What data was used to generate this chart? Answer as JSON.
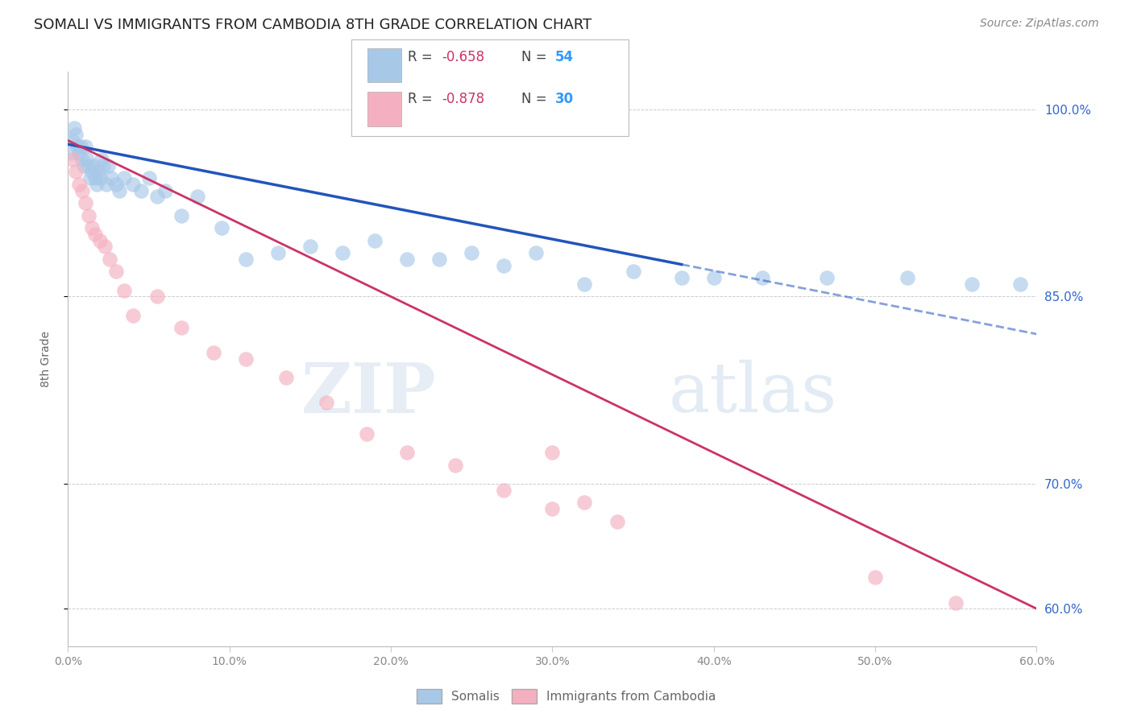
{
  "title": "SOMALI VS IMMIGRANTS FROM CAMBODIA 8TH GRADE CORRELATION CHART",
  "source": "Source: ZipAtlas.com",
  "ylabel": "8th Grade",
  "background_color": "#ffffff",
  "grid_color": "#cccccc",
  "somali_scatter_color": "#a8c8e8",
  "cambodia_scatter_color": "#f4b0c0",
  "somali_line_color": "#2255bb",
  "cambodia_line_color": "#cc3366",
  "R_text_color": "#cc3366",
  "N_text_color": "#3399ff",
  "right_axis_color": "#3366cc",
  "x_min": 0.0,
  "x_max": 60.0,
  "y_min": 57.0,
  "y_max": 103.0,
  "y_ticks": [
    60.0,
    70.0,
    85.0,
    100.0
  ],
  "x_ticks": [
    0.0,
    10.0,
    20.0,
    30.0,
    40.0,
    50.0,
    60.0
  ],
  "somali_label": "Somalis",
  "cambodia_label": "Immigrants from Cambodia",
  "somali_line_x0": 0.0,
  "somali_line_y0": 97.2,
  "somali_line_x1": 60.0,
  "somali_line_y1": 82.0,
  "somali_solid_end": 38.0,
  "cambodia_line_x0": 0.0,
  "cambodia_line_y0": 97.5,
  "cambodia_line_x1": 60.0,
  "cambodia_line_y1": 60.0,
  "somali_x": [
    0.2,
    0.3,
    0.4,
    0.5,
    0.6,
    0.7,
    0.8,
    0.9,
    1.0,
    1.1,
    1.2,
    1.3,
    1.4,
    1.5,
    1.6,
    1.7,
    1.8,
    1.9,
    2.0,
    2.1,
    2.2,
    2.4,
    2.5,
    2.7,
    3.0,
    3.2,
    3.5,
    4.0,
    4.5,
    5.0,
    5.5,
    6.0,
    7.0,
    8.0,
    9.5,
    11.0,
    13.0,
    15.0,
    17.0,
    19.0,
    21.0,
    23.0,
    25.0,
    27.0,
    29.0,
    32.0,
    35.0,
    38.0,
    40.0,
    43.0,
    47.0,
    52.0,
    56.0,
    59.0
  ],
  "somali_y": [
    96.5,
    97.5,
    98.5,
    98.0,
    97.0,
    96.5,
    97.0,
    96.0,
    95.5,
    97.0,
    96.0,
    95.5,
    94.5,
    95.0,
    95.5,
    94.5,
    94.0,
    95.0,
    94.5,
    96.0,
    95.5,
    94.0,
    95.5,
    94.5,
    94.0,
    93.5,
    94.5,
    94.0,
    93.5,
    94.5,
    93.0,
    93.5,
    91.5,
    93.0,
    90.5,
    88.0,
    88.5,
    89.0,
    88.5,
    89.5,
    88.0,
    88.0,
    88.5,
    87.5,
    88.5,
    86.0,
    87.0,
    86.5,
    86.5,
    86.5,
    86.5,
    86.5,
    86.0,
    86.0
  ],
  "cambodia_x": [
    0.3,
    0.5,
    0.7,
    0.9,
    1.1,
    1.3,
    1.5,
    1.7,
    2.0,
    2.3,
    2.6,
    3.0,
    3.5,
    4.0,
    5.5,
    7.0,
    9.0,
    11.0,
    13.5,
    16.0,
    18.5,
    21.0,
    24.0,
    27.0,
    30.0,
    32.0,
    34.0,
    30.0,
    50.0,
    55.0
  ],
  "cambodia_y": [
    96.0,
    95.0,
    94.0,
    93.5,
    92.5,
    91.5,
    90.5,
    90.0,
    89.5,
    89.0,
    88.0,
    87.0,
    85.5,
    83.5,
    85.0,
    82.5,
    80.5,
    80.0,
    78.5,
    76.5,
    74.0,
    72.5,
    71.5,
    69.5,
    68.0,
    68.5,
    67.0,
    72.5,
    62.5,
    60.5
  ]
}
